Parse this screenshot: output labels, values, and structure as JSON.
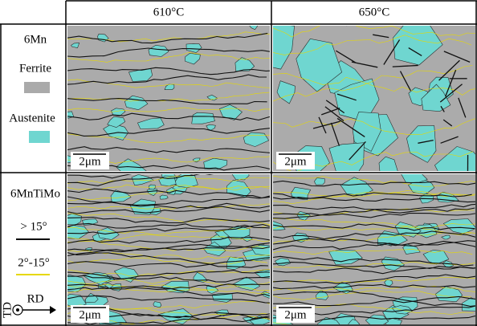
{
  "header": {
    "columns": [
      "610°C",
      "650°C"
    ]
  },
  "rows": [
    {
      "label": "6Mn",
      "legend": [
        "Ferrite",
        "Austenite"
      ]
    },
    {
      "label": "6MnTiMo",
      "legend": [
        "> 15°",
        "2°-15°"
      ]
    }
  ],
  "orientation": {
    "td": "TD",
    "rd": "RD"
  },
  "scale_bar": "2μm"
}
